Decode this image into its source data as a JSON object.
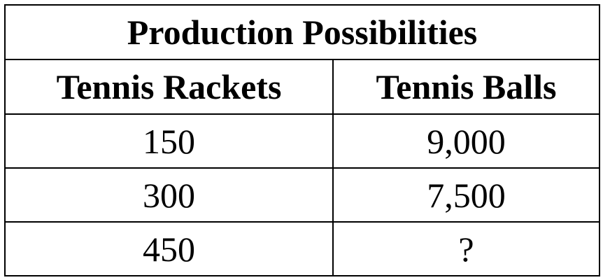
{
  "table": {
    "title": "Production Possibilities",
    "columns": [
      "Tennis Rackets",
      "Tennis Balls"
    ],
    "rows": [
      [
        "150",
        "9,000"
      ],
      [
        "300",
        "7,500"
      ],
      [
        "450",
        "?"
      ]
    ]
  }
}
